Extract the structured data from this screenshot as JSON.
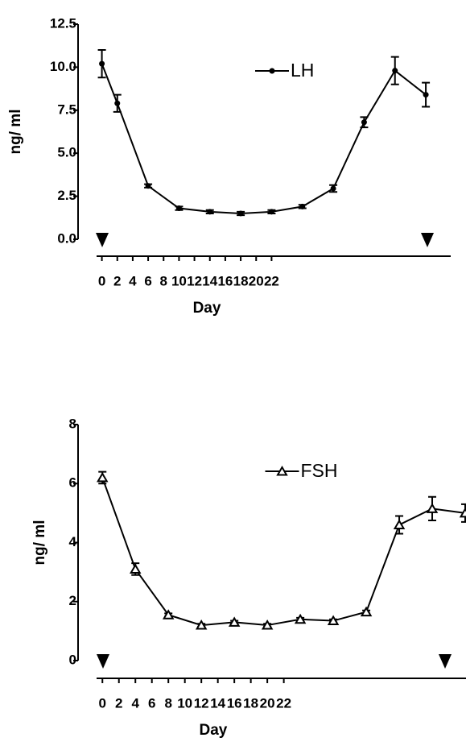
{
  "chart_data": [
    {
      "type": "line",
      "xlabel": "Day",
      "ylabel": "ng/ ml",
      "legend": "upper center",
      "x": [
        0,
        2,
        6,
        10,
        14,
        18,
        22,
        26,
        30,
        34,
        38,
        42
      ],
      "series": [
        {
          "name": "LH",
          "color": "#000000",
          "marker": "circle",
          "values": [
            10.2,
            7.9,
            3.1,
            1.8,
            1.6,
            1.5,
            1.6,
            1.9,
            2.95,
            6.8,
            9.8,
            8.4
          ],
          "errors": [
            0.8,
            0.5,
            0.1,
            0.1,
            0.1,
            0.1,
            0.1,
            0.1,
            0.2,
            0.3,
            0.8,
            0.7
          ]
        }
      ],
      "xlim": [
        -1,
        47
      ],
      "ylim": [
        0,
        12.5
      ],
      "xticks": [
        0,
        2,
        4,
        6,
        8,
        10,
        12,
        14,
        16,
        18,
        20,
        22
      ],
      "yticks": [
        {
          "value": 0,
          "label": "0.0"
        },
        2.5,
        {
          "value": 5,
          "label": "5.0"
        },
        7.5,
        {
          "value": 10,
          "label": "10.0"
        },
        12.5
      ]
    },
    {
      "type": "line",
      "xlabel": "Day",
      "ylabel": "ng/ ml",
      "legend": "upper center",
      "x": [
        0,
        4,
        8,
        12,
        16,
        20,
        24,
        28,
        32,
        36,
        40,
        44
      ],
      "series": [
        {
          "name": "FSH",
          "color": "#000000",
          "marker": "triangle",
          "values": [
            6.2,
            3.1,
            1.55,
            1.2,
            1.3,
            1.2,
            1.4,
            1.35,
            1.65,
            4.6,
            5.15,
            5.0
          ],
          "errors": [
            0.2,
            0.2,
            0.05,
            0.05,
            0.05,
            0.05,
            0.05,
            0.05,
            0.05,
            0.3,
            0.4,
            0.3
          ]
        }
      ],
      "xlim": [
        -1,
        44
      ],
      "ylim": [
        0,
        8
      ],
      "xticks": [
        0,
        2,
        4,
        6,
        8,
        10,
        12,
        14,
        16,
        18,
        20,
        22
      ],
      "yticks": [
        0,
        2,
        4,
        6,
        8
      ]
    }
  ]
}
